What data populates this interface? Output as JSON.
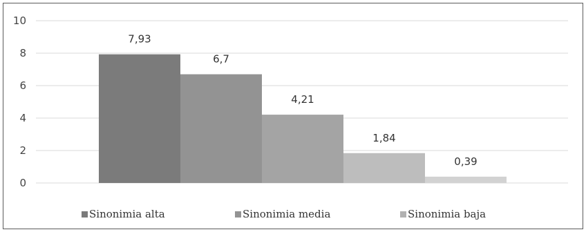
{
  "chart_data": {
    "type": "bar",
    "categories": [
      "Sinonimia alta",
      "Sinonimia media",
      "Sinonimia baja"
    ],
    "bars": [
      {
        "value": 7.93,
        "label": "7,93",
        "color": "#7b7b7b"
      },
      {
        "value": 6.7,
        "label": "6,7",
        "color": "#939393"
      },
      {
        "value": 4.21,
        "label": "4,21",
        "color": "#a4a4a4"
      },
      {
        "value": 1.84,
        "label": "1,84",
        "color": "#bdbdbd"
      },
      {
        "value": 0.39,
        "label": "0,39",
        "color": "#d2d2d2"
      }
    ],
    "ylim": [
      0,
      10
    ],
    "yticks": [
      "0",
      "2",
      "4",
      "6",
      "8",
      "10"
    ],
    "grid": true,
    "legend": {
      "position": "bottom",
      "items": [
        {
          "label": "Sinonimia alta",
          "color": "#7b7b7b"
        },
        {
          "label": "Sinonimia media",
          "color": "#939393"
        },
        {
          "label": "Sinonimia baja",
          "color": "#b1b1b1"
        }
      ]
    },
    "title": "",
    "xlabel": "",
    "ylabel": ""
  }
}
